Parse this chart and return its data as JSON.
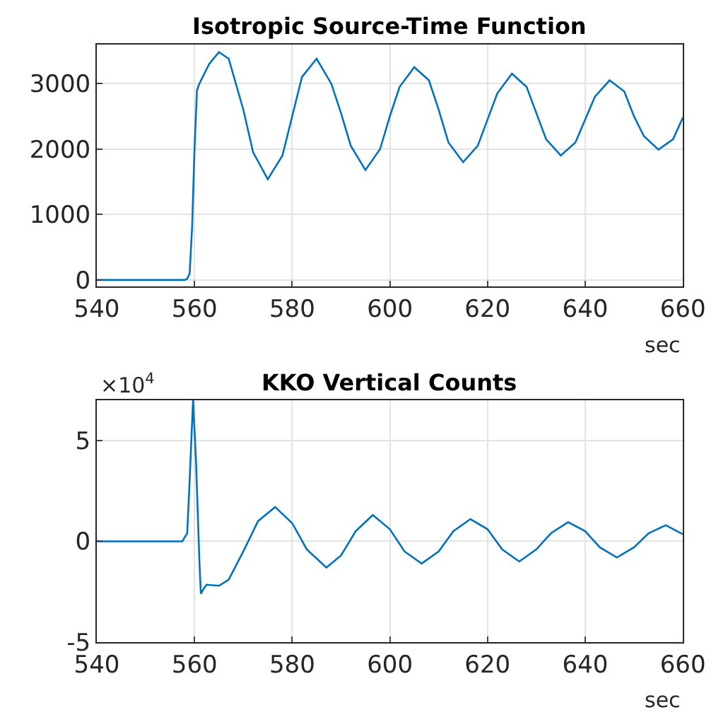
{
  "chart_data": [
    {
      "type": "line",
      "title": "Isotropic Source-Time Function",
      "xlabel": "sec",
      "series": [
        {
          "color": "#0072bd",
          "x": [
            540,
            550,
            558,
            558.5,
            559,
            559.5,
            560,
            560.5,
            561,
            563,
            565,
            567,
            570,
            572,
            575,
            578,
            580,
            582,
            585,
            588,
            590,
            592,
            595,
            598,
            600,
            602,
            605,
            608,
            610,
            612,
            615,
            618,
            620,
            622,
            625,
            628,
            630,
            632,
            635,
            638,
            640,
            642,
            645,
            648,
            650,
            652,
            655,
            658,
            660
          ],
          "values": [
            0,
            0,
            0,
            20,
            100,
            800,
            2000,
            2900,
            3000,
            3300,
            3480,
            3380,
            2600,
            1950,
            1540,
            1900,
            2500,
            3100,
            3380,
            3000,
            2550,
            2050,
            1680,
            2000,
            2500,
            2950,
            3250,
            3050,
            2600,
            2100,
            1800,
            2050,
            2450,
            2850,
            3150,
            2950,
            2550,
            2150,
            1900,
            2100,
            2450,
            2800,
            3050,
            2880,
            2500,
            2200,
            1990,
            2150,
            2480
          ]
        }
      ],
      "xlim": [
        540,
        660
      ],
      "xticks": [
        540,
        560,
        580,
        600,
        620,
        640,
        660
      ],
      "ylim": [
        -100,
        3600
      ],
      "yticks": [
        0,
        1000,
        2000,
        3000
      ],
      "grid": true,
      "marker": "none",
      "line_style": "solid"
    },
    {
      "type": "line",
      "title": "KKO Vertical Counts",
      "xlabel": "sec",
      "annotations": [
        "×10$^{4}$"
      ],
      "series": [
        {
          "color": "#0072bd",
          "x": [
            540,
            550,
            557.5,
            558.5,
            559,
            559.7,
            560.3,
            561,
            561.3,
            562,
            562.5,
            565,
            567,
            570,
            573,
            576.5,
            580,
            583,
            587,
            590,
            593,
            596.5,
            600,
            603,
            606.5,
            610,
            613,
            616.5,
            620,
            623,
            626.5,
            630,
            633,
            636.5,
            640,
            643,
            646.5,
            650,
            653,
            656.5,
            660
          ],
          "values": [
            0,
            0,
            0,
            0.4,
            3,
            7,
            4,
            -1,
            -2.6,
            -2.3,
            -2.15,
            -2.2,
            -1.9,
            -0.5,
            1.0,
            1.7,
            0.9,
            -0.4,
            -1.3,
            -0.7,
            0.5,
            1.3,
            0.6,
            -0.5,
            -1.1,
            -0.5,
            0.5,
            1.1,
            0.6,
            -0.4,
            -1.0,
            -0.4,
            0.4,
            0.95,
            0.5,
            -0.3,
            -0.8,
            -0.3,
            0.4,
            0.8,
            0.35
          ]
        }
      ],
      "xlim": [
        540,
        660
      ],
      "xticks": [
        540,
        560,
        580,
        600,
        620,
        640,
        660
      ],
      "ylim": [
        -5,
        7
      ],
      "yticks": [
        -5,
        0,
        5
      ],
      "grid": true,
      "marker": "none",
      "line_style": "solid"
    }
  ]
}
